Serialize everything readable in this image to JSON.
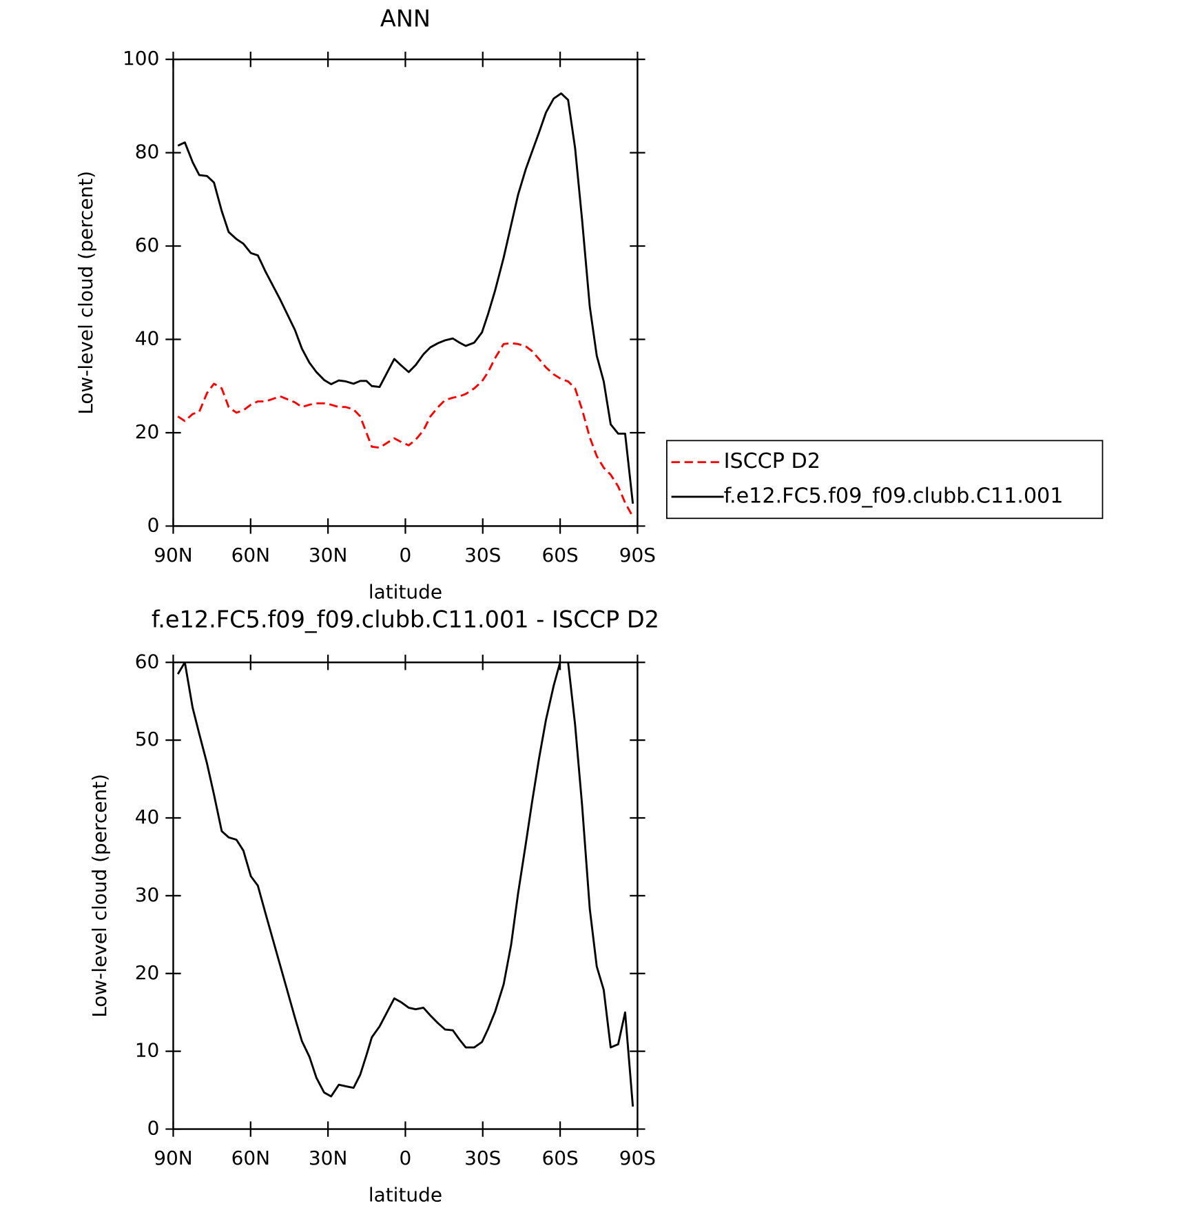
{
  "chart_data": [
    {
      "type": "line",
      "title": "ANN",
      "xlabel": "latitude",
      "ylabel": "Low-level cloud (percent)",
      "x": [
        88.2,
        85.5,
        82.5,
        79.9,
        76.9,
        74.2,
        71.2,
        68.5,
        65.5,
        62.8,
        59.9,
        57.2,
        54.2,
        48.5,
        42.8,
        40.1,
        37.2,
        34.5,
        31.5,
        28.8,
        25.8,
        23.1,
        20.1,
        17.5,
        15.1,
        13.0,
        10.0,
        4.3,
        1.6,
        -1.3,
        -4.0,
        -7.0,
        -9.7,
        -12.7,
        -15.4,
        -18.4,
        -21.0,
        -23.4,
        -26.7,
        -29.7,
        -32.1,
        -34.8,
        -38.1,
        -41.0,
        -43.7,
        -46.7,
        -49.1,
        -51.8,
        -54.5,
        -57.5,
        -60.4,
        -63.1,
        -65.8,
        -68.5,
        -71.5,
        -74.2,
        -76.9,
        -79.6,
        -82.5,
        -85.2,
        -88.2
      ],
      "series": [
        {
          "name": "ISCCP D2",
          "color": "#ff0000",
          "style": "dashed",
          "values": [
            23.5,
            22.5,
            24,
            24.5,
            28.5,
            30.5,
            29.5,
            25.5,
            24.3,
            24.8,
            26,
            26.7,
            26.7,
            27.8,
            26.5,
            25.5,
            26,
            26.3,
            26.3,
            26,
            25.5,
            25.5,
            25,
            23.5,
            20,
            17,
            16.8,
            18.8,
            18,
            17.3,
            18.5,
            20.5,
            23.5,
            25.5,
            27,
            27.5,
            27.8,
            28.3,
            29.5,
            31,
            33,
            36,
            39,
            39.2,
            39,
            38.5,
            37.5,
            35.8,
            34,
            32.5,
            31.5,
            31,
            29.5,
            25,
            19,
            15,
            12.5,
            11,
            8.5,
            5,
            2
          ]
        },
        {
          "name": "f.e12.FC5.f09_f09.clubb.C11.001",
          "color": "#000000",
          "style": "solid",
          "values": [
            81.5,
            82.2,
            78,
            75.2,
            75,
            73.6,
            67.5,
            63,
            61.5,
            60.5,
            58.5,
            58,
            54.5,
            48.5,
            42,
            38,
            35,
            33,
            31.3,
            30.4,
            31.2,
            31,
            30.5,
            31.1,
            31.1,
            30,
            29.8,
            35.8,
            34.4,
            33,
            34.5,
            36.8,
            38.3,
            39.2,
            39.8,
            40.2,
            39.3,
            38.6,
            39.3,
            41.5,
            45.5,
            50.5,
            57.5,
            64.5,
            71,
            76.5,
            80.2,
            84.3,
            88.6,
            91.6,
            92.7,
            91.3,
            81,
            65.7,
            47,
            36.5,
            31,
            21.8,
            19.8,
            19.8,
            4.8
          ]
        }
      ],
      "xlim": [
        90,
        -90
      ],
      "xticks": [
        {
          "value": 90,
          "label": "90N"
        },
        {
          "value": 60,
          "label": "60N"
        },
        {
          "value": 30,
          "label": "30N"
        },
        0,
        {
          "value": -30,
          "label": "30S"
        },
        {
          "value": -60,
          "label": "60S"
        },
        {
          "value": -90,
          "label": "90S"
        }
      ],
      "ylim": [
        0,
        100
      ],
      "yticks": [
        0,
        20,
        40,
        60,
        80,
        100
      ]
    },
    {
      "type": "line",
      "title": "f.e12.FC5.f09_f09.clubb.C11.001 - ISCCP D2",
      "xlabel": "latitude",
      "ylabel": "Low-level cloud (percent)",
      "x": [
        88.2,
        85.5,
        82.5,
        79.9,
        76.9,
        74.2,
        71.2,
        68.5,
        65.5,
        62.8,
        59.9,
        57.2,
        54.2,
        48.5,
        42.8,
        40.1,
        37.2,
        34.5,
        31.5,
        28.8,
        25.8,
        23.1,
        20.1,
        17.5,
        15.1,
        13.0,
        10.0,
        4.3,
        1.6,
        -1.3,
        -4.0,
        -7.0,
        -9.7,
        -12.7,
        -15.4,
        -18.4,
        -21.0,
        -23.4,
        -26.7,
        -29.7,
        -32.1,
        -34.8,
        -38.1,
        -41.0,
        -43.7,
        -46.7,
        -49.1,
        -51.8,
        -54.5,
        -57.5,
        -60.4,
        -63.1,
        -65.8,
        -68.5,
        -71.5,
        -74.2,
        -76.9,
        -79.6,
        -82.5,
        -85.2,
        -88.2
      ],
      "color": "#000000",
      "values": [
        58.5,
        60,
        54.2,
        50.8,
        47,
        43,
        38.3,
        37.5,
        37.2,
        35.8,
        32.5,
        31.3,
        27.7,
        21,
        14.3,
        11.3,
        9.3,
        6.6,
        4.7,
        4.2,
        5.7,
        5.5,
        5.3,
        7,
        9.5,
        11.8,
        13.2,
        16.8,
        16.3,
        15.6,
        15.4,
        15.6,
        14.6,
        13.6,
        12.8,
        12.7,
        11.5,
        10.5,
        10.5,
        11.2,
        12.9,
        15.1,
        18.6,
        23.7,
        30.3,
        36.7,
        42,
        47.6,
        52.6,
        57,
        60.5,
        60,
        52,
        41.7,
        28.3,
        20.9,
        17.9,
        10.5,
        10.9,
        15,
        2.9
      ],
      "xlim": [
        90,
        -90
      ],
      "xticks": [
        {
          "value": 90,
          "label": "90N"
        },
        {
          "value": 60,
          "label": "60N"
        },
        {
          "value": 30,
          "label": "30N"
        },
        0,
        {
          "value": -30,
          "label": "30S"
        },
        {
          "value": -60,
          "label": "60S"
        },
        {
          "value": -90,
          "label": "90S"
        }
      ],
      "ylim": [
        0,
        60
      ],
      "yticks": [
        0,
        10,
        20,
        30,
        40,
        50,
        60
      ]
    }
  ]
}
